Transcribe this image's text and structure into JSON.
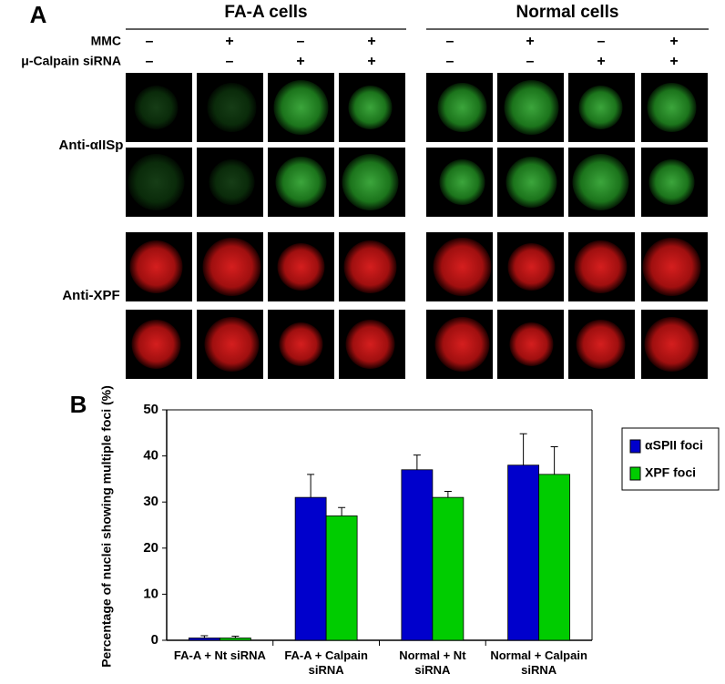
{
  "panel_a": {
    "label": "A",
    "groups": [
      "FA-A cells",
      "Normal cells"
    ],
    "rows": [
      {
        "name": "MMC",
        "signs": [
          "–",
          "+",
          "–",
          "+",
          "–",
          "+",
          "–",
          "+"
        ]
      },
      {
        "name": "μ-Calpain siRNA",
        "signs": [
          "–",
          "–",
          "+",
          "+",
          "–",
          "–",
          "+",
          "+"
        ]
      }
    ],
    "stains": [
      "Anti-αIISp",
      "Anti-XPF"
    ]
  },
  "chart_data": {
    "type": "bar",
    "label": "B",
    "y_label": "Percentage of nuclei showing multiple foci (%)",
    "categories": [
      "FA-A + Nt siRNA",
      "FA-A + Calpain siRNA",
      "Normal + Nt siRNA",
      "Normal + Calpain siRNA"
    ],
    "series": [
      {
        "name": "αSPII foci",
        "color": "#0000cc",
        "values": [
          0.5,
          31,
          37,
          38
        ],
        "errors": [
          0.5,
          5,
          3.2,
          6.8
        ]
      },
      {
        "name": "XPF foci",
        "color": "#00cc00",
        "values": [
          0.5,
          27,
          31,
          36
        ],
        "errors": [
          0.4,
          1.8,
          1.3,
          6
        ]
      }
    ],
    "ylim": [
      0,
      50
    ],
    "yticks": [
      0,
      10,
      20,
      30,
      40,
      50
    ],
    "legend": "right"
  }
}
